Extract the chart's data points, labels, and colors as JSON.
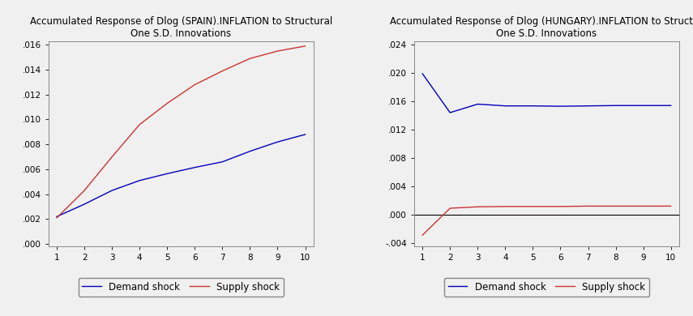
{
  "spain": {
    "title_line1": "Accumulated Response of Dlog (SPAIN).INFLATION to Structural",
    "title_line2": "One S.D. Innovations",
    "demand_shock": [
      0.0022,
      0.0032,
      0.0043,
      0.0051,
      0.00565,
      0.00615,
      0.0066,
      0.00745,
      0.0082,
      0.0088
    ],
    "supply_shock": [
      0.0021,
      0.0043,
      0.007,
      0.0096,
      0.0113,
      0.0128,
      0.0139,
      0.0149,
      0.0155,
      0.0159
    ],
    "xlim": [
      0.7,
      10.3
    ],
    "ylim": [
      -0.0002,
      0.0163
    ],
    "yticks": [
      0.0,
      0.002,
      0.004,
      0.006,
      0.008,
      0.01,
      0.012,
      0.014,
      0.016
    ],
    "xticks": [
      1,
      2,
      3,
      4,
      5,
      6,
      7,
      8,
      9,
      10
    ]
  },
  "hungary": {
    "title_line1": "Accumulated Response of Dlog (HUNGARY).INFLATION to Structur",
    "title_line2": "One S.D. Innovations",
    "demand_shock": [
      0.0199,
      0.0144,
      0.0156,
      0.01535,
      0.01535,
      0.0153,
      0.01535,
      0.0154,
      0.0154,
      0.0154
    ],
    "supply_shock": [
      -0.0029,
      0.0009,
      0.0011,
      0.00115,
      0.00115,
      0.00115,
      0.0012,
      0.0012,
      0.0012,
      0.0012
    ],
    "xlim": [
      0.7,
      10.3
    ],
    "ylim": [
      -0.0045,
      0.0245
    ],
    "yticks": [
      -0.004,
      0.0,
      0.004,
      0.008,
      0.012,
      0.016,
      0.02,
      0.024
    ],
    "xticks": [
      1,
      2,
      3,
      4,
      5,
      6,
      7,
      8,
      9,
      10
    ]
  },
  "demand_color": "#0000BB",
  "supply_color": "#CC3333",
  "demand_label": "Demand shock",
  "supply_label": "Supply shock",
  "bg_color": "#f0f0f0",
  "legend_fontsize": 8.5,
  "title_fontsize": 8.5,
  "tick_fontsize": 7.5,
  "linewidth": 1.0
}
